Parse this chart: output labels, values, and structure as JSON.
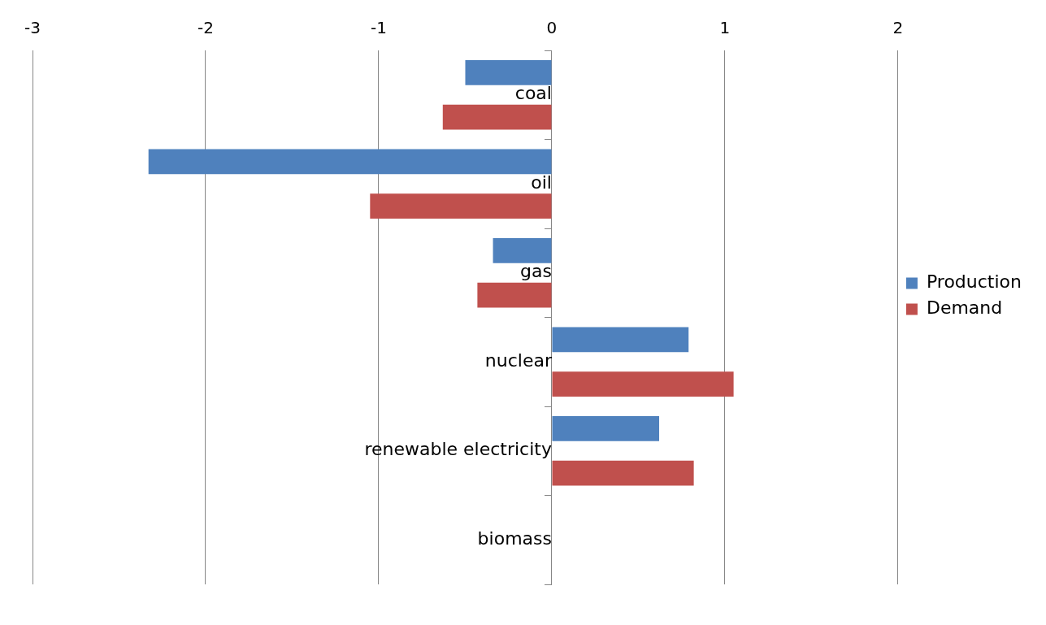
{
  "chart_data": {
    "type": "bar",
    "orientation": "horizontal",
    "categories": [
      "coal",
      "oil",
      "gas",
      "nuclear",
      "renewable electricity",
      "biomass"
    ],
    "series": [
      {
        "name": "Production",
        "color": "#4f81bd",
        "values": [
          -0.5,
          -2.33,
          -0.34,
          0.79,
          0.62,
          0
        ]
      },
      {
        "name": "Demand",
        "color": "#c0504d",
        "values": [
          -0.63,
          -1.05,
          -0.43,
          1.05,
          0.82,
          0
        ]
      }
    ],
    "xlim": [
      -3,
      2
    ],
    "xticks": [
      -3,
      -2,
      -1,
      0,
      1,
      2
    ],
    "grid": "x",
    "legend": "right"
  }
}
